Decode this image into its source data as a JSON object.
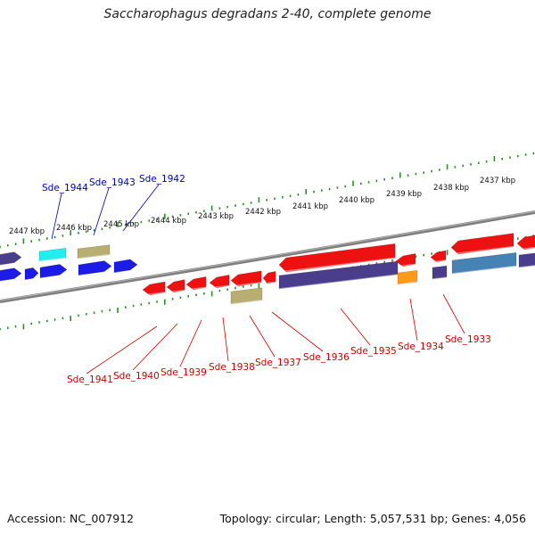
{
  "title": "Saccharophagus degradans 2-40, complete genome",
  "footer": {
    "accession": "Accession: NC_007912",
    "summary": "Topology: circular; Length: 5,057,531 bp; Genes: 4,056"
  },
  "colors": {
    "background": "#ffffff",
    "backbone": "#7f7f7f",
    "tick": "#2e8b2e",
    "label_plus": "#0000aa",
    "label_minus": "#cc0000",
    "gene_red": "#ee1111",
    "gene_blue": "#1c1ce6",
    "gene_navy": "#4a3e8c",
    "gene_cyan": "#22eeee",
    "gene_khaki": "#b8ae72",
    "gene_orange": "#ff9a1a",
    "gene_steel": "#4682b4"
  },
  "scale_labels": [
    "2447 kbp",
    "2446 kbp",
    "2445 kbp",
    "2444 kbp",
    "2443 kbp",
    "2442 kbp",
    "2441 kbp",
    "2440 kbp",
    "2439 kbp",
    "2438 kbp",
    "2437 kbp"
  ],
  "gene_labels_top": [
    "Sde_1944",
    "Sde_1943",
    "Sde_1942"
  ],
  "gene_labels_bottom": [
    "Sde_1941",
    "Sde_1940",
    "Sde_1939",
    "Sde_1938",
    "Sde_1937",
    "Sde_1936",
    "Sde_1935",
    "Sde_1934",
    "Sde_1933"
  ]
}
